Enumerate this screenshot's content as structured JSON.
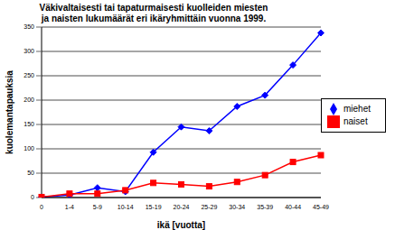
{
  "chart_data": {
    "type": "line",
    "title": "Väkivaltaisesti tai tapaturmaisesti kuolleiden miesten\nja naisten lukumäärät eri ikäryhmittäin vuonna 1999.",
    "x_label": "ikä [vuotta]",
    "y_label": "kuolemantapauksia",
    "categories": [
      "0",
      "1-4",
      "5-9",
      "10-14",
      "15-19",
      "20-24",
      "25-29",
      "30-34",
      "35-39",
      "40-44",
      "45-49"
    ],
    "series": [
      {
        "name": "miehet",
        "color": "#0000ff",
        "marker": "diamond",
        "values": [
          1,
          5,
          20,
          12,
          93,
          145,
          137,
          187,
          210,
          272,
          338
        ]
      },
      {
        "name": "naiset",
        "color": "#ff0000",
        "marker": "square",
        "values": [
          1,
          8,
          8,
          15,
          30,
          27,
          23,
          32,
          46,
          73,
          87
        ]
      }
    ],
    "ylim": [
      0,
      350
    ],
    "yticks": [
      0,
      50,
      100,
      150,
      200,
      250,
      300,
      350
    ],
    "grid": true,
    "legend": "right"
  }
}
